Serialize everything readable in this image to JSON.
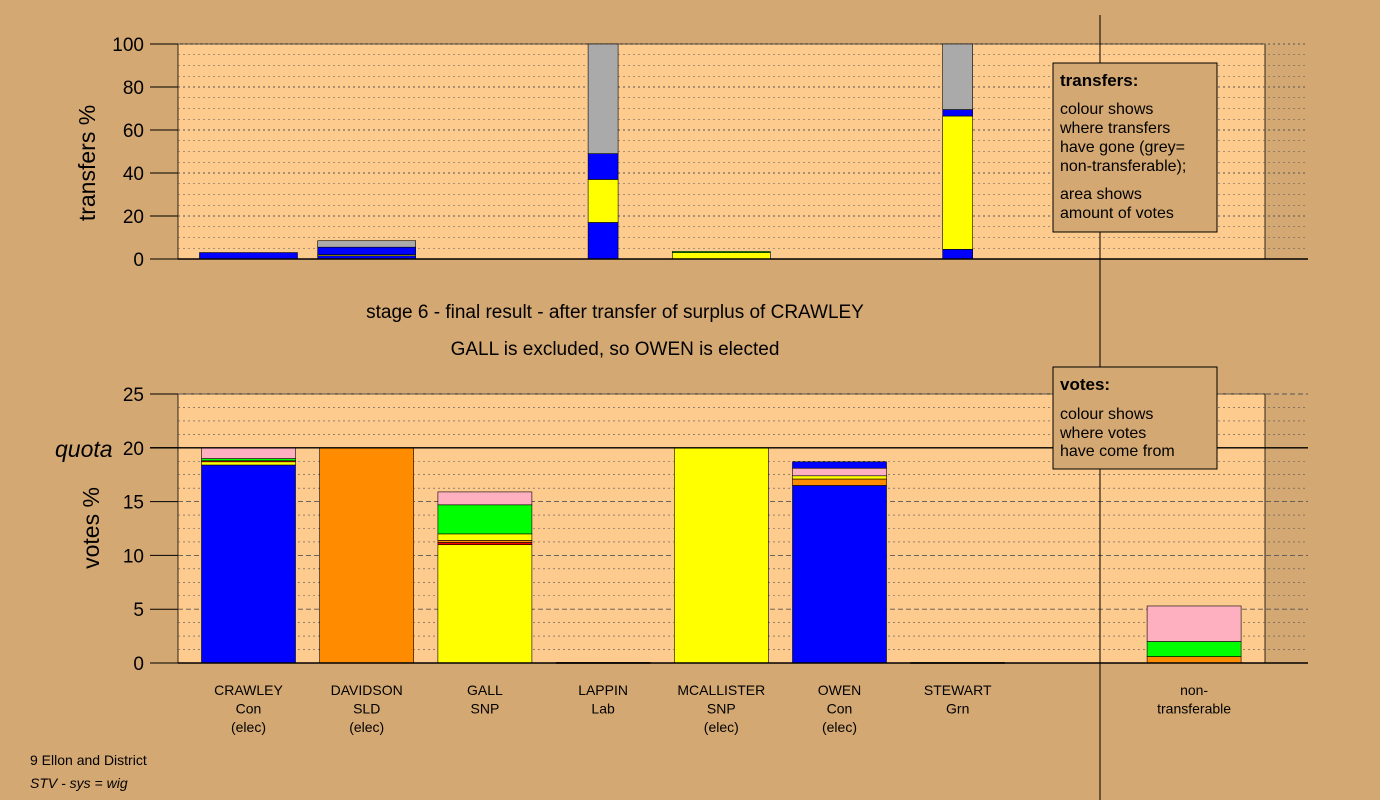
{
  "colors": {
    "background": "#d4a872",
    "plot_area": "#fecb8e",
    "Con": "#0000ff",
    "SLD": "#ff8c00",
    "SNP": "#ffff00",
    "Lab": "#ff0000",
    "Grn": "#00ff00",
    "Other": "#ffb0c0",
    "non_transferable": "#aaaaaa"
  },
  "titles": {
    "line1": "stage 6 - final result - after transfer of surplus of CRAWLEY",
    "line2": "GALL is excluded, so OWEN is elected"
  },
  "footer": {
    "ward": "9 Ellon and District",
    "system": "STV - sys = wig"
  },
  "legend_transfers": {
    "title": "transfers:",
    "lines": [
      "colour shows",
      "where transfers",
      "have gone (grey=",
      "non-transferable);",
      "area shows",
      "amount of votes"
    ]
  },
  "legend_votes": {
    "title": "votes:",
    "lines": [
      "colour shows",
      "where votes",
      "have come from"
    ]
  },
  "candidates": [
    {
      "name": "CRAWLEY",
      "party": "Con",
      "status": "(elec)"
    },
    {
      "name": "DAVIDSON",
      "party": "SLD",
      "status": "(elec)"
    },
    {
      "name": "GALL",
      "party": "SNP",
      "status": ""
    },
    {
      "name": "LAPPIN",
      "party": "Lab",
      "status": ""
    },
    {
      "name": "MCALLISTER",
      "party": "SNP",
      "status": "(elec)"
    },
    {
      "name": "OWEN",
      "party": "Con",
      "status": "(elec)"
    },
    {
      "name": "STEWART",
      "party": "Grn",
      "status": ""
    },
    {
      "name": "",
      "party": "",
      "status": ""
    },
    {
      "name": "non-",
      "party": "transferable",
      "status": ""
    }
  ],
  "chart_data": [
    {
      "type": "bar",
      "stacked": true,
      "ylabel": "transfers %",
      "ylim": [
        0,
        100
      ],
      "yticks": [
        0,
        20,
        40,
        60,
        80,
        100
      ],
      "grid": "dotted",
      "columns": [
        {
          "index": 0,
          "width": "full",
          "segments": [
            {
              "color": "Con",
              "value": 3
            }
          ]
        },
        {
          "index": 1,
          "width": "full",
          "segments": [
            {
              "color": "Con",
              "value": 1.5
            },
            {
              "color": "SNP",
              "value": 0.5
            },
            {
              "color": "Con",
              "value": 3.5
            },
            {
              "color": "non_transferable",
              "value": 3
            }
          ]
        },
        {
          "index": 3,
          "width": "narrow",
          "segments": [
            {
              "color": "Con",
              "value": 17
            },
            {
              "color": "SNP",
              "value": 20
            },
            {
              "color": "Con",
              "value": 12
            },
            {
              "color": "non_transferable",
              "value": 51
            }
          ]
        },
        {
          "index": 4,
          "width": "full",
          "segments": [
            {
              "color": "SNP",
              "value": 3
            },
            {
              "color": "Grn",
              "value": 0.5
            }
          ]
        },
        {
          "index": 6,
          "width": "narrow",
          "segments": [
            {
              "color": "Con",
              "value": 4.5
            },
            {
              "color": "SNP",
              "value": 62
            },
            {
              "color": "Con",
              "value": 3
            },
            {
              "color": "non_transferable",
              "value": 30.5
            }
          ]
        }
      ]
    },
    {
      "type": "bar",
      "stacked": true,
      "ylabel": "votes %",
      "ylim": [
        0,
        25
      ],
      "yticks": [
        0,
        5,
        10,
        15,
        20,
        25
      ],
      "quota": {
        "label": "quota",
        "value": 20
      },
      "grid": "dashed",
      "columns": [
        {
          "index": 0,
          "segments": [
            {
              "color": "Con",
              "value": 18.4
            },
            {
              "color": "SNP",
              "value": 0.3
            },
            {
              "color": "Lab",
              "value": 0.1
            },
            {
              "color": "Grn",
              "value": 0.2
            },
            {
              "color": "Other",
              "value": 1.0
            }
          ]
        },
        {
          "index": 1,
          "segments": [
            {
              "color": "SLD",
              "value": 20
            }
          ]
        },
        {
          "index": 2,
          "segments": [
            {
              "color": "SNP",
              "value": 11.0
            },
            {
              "color": "Lab",
              "value": 0.2
            },
            {
              "color": "SLD",
              "value": 0.2
            },
            {
              "color": "SNP",
              "value": 0.6
            },
            {
              "color": "Grn",
              "value": 2.7
            },
            {
              "color": "Other",
              "value": 1.2
            }
          ]
        },
        {
          "index": 3,
          "segments": [
            {
              "color": "Lab",
              "value": 0.05
            }
          ]
        },
        {
          "index": 4,
          "segments": [
            {
              "color": "SNP",
              "value": 20
            }
          ]
        },
        {
          "index": 5,
          "segments": [
            {
              "color": "Con",
              "value": 16.5
            },
            {
              "color": "SLD",
              "value": 0.6
            },
            {
              "color": "SNP",
              "value": 0.3
            },
            {
              "color": "Other",
              "value": 0.7
            },
            {
              "color": "Con",
              "value": 0.6
            }
          ]
        },
        {
          "index": 6,
          "segments": [
            {
              "color": "Grn",
              "value": 0.05
            }
          ]
        },
        {
          "index": 8,
          "segments": [
            {
              "color": "SLD",
              "value": 0.6
            },
            {
              "color": "Grn",
              "value": 1.4
            },
            {
              "color": "Other",
              "value": 3.3
            }
          ]
        }
      ]
    }
  ]
}
